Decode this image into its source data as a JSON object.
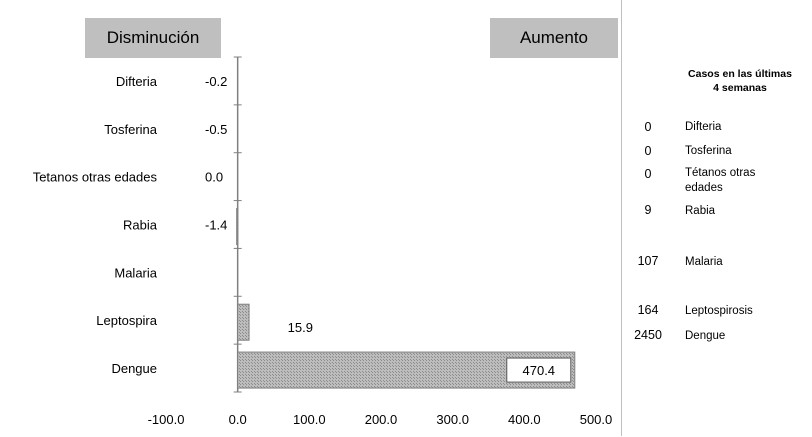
{
  "chart_data": {
    "type": "bar",
    "orientation": "horizontal",
    "headers": {
      "left": "Disminución",
      "right": "Aumento"
    },
    "categories": [
      "Difteria",
      "Tosferina",
      "Tetanos otras edades",
      "Rabia",
      "Malaria",
      "Leptospira",
      "Dengue"
    ],
    "values": [
      -0.2,
      -0.5,
      0.0,
      -1.4,
      null,
      15.9,
      470.4
    ],
    "value_labels": [
      "-0.2",
      "-0.5",
      "0.0",
      "-1.4",
      "",
      "15.9",
      "470.4"
    ],
    "xlim": [
      -100,
      500
    ],
    "xticks": [
      "-100.0",
      "0.0",
      "100.0",
      "200.0",
      "300.0",
      "400.0",
      "500.0"
    ],
    "grid": false,
    "colors": {
      "bar_fill": "#a6a6a6",
      "bar_stroke": "#7f7f7f",
      "axis": "#808080",
      "header_bg": "#bfbfbf"
    }
  },
  "side_table": {
    "title_line1": "Casos en las últimas",
    "title_line2": "4 semanas",
    "rows": [
      {
        "count": "0",
        "name": "Difteria"
      },
      {
        "count": "0",
        "name": "Tosferina"
      },
      {
        "count": "0",
        "name_line1": "Tétanos otras",
        "name_line2": "edades"
      },
      {
        "count": "9",
        "name": "Rabia"
      },
      {
        "count": "107",
        "name": "Malaria"
      },
      {
        "count": "164",
        "name": "Leptospirosis"
      },
      {
        "count": "2450",
        "name": "Dengue"
      }
    ]
  }
}
